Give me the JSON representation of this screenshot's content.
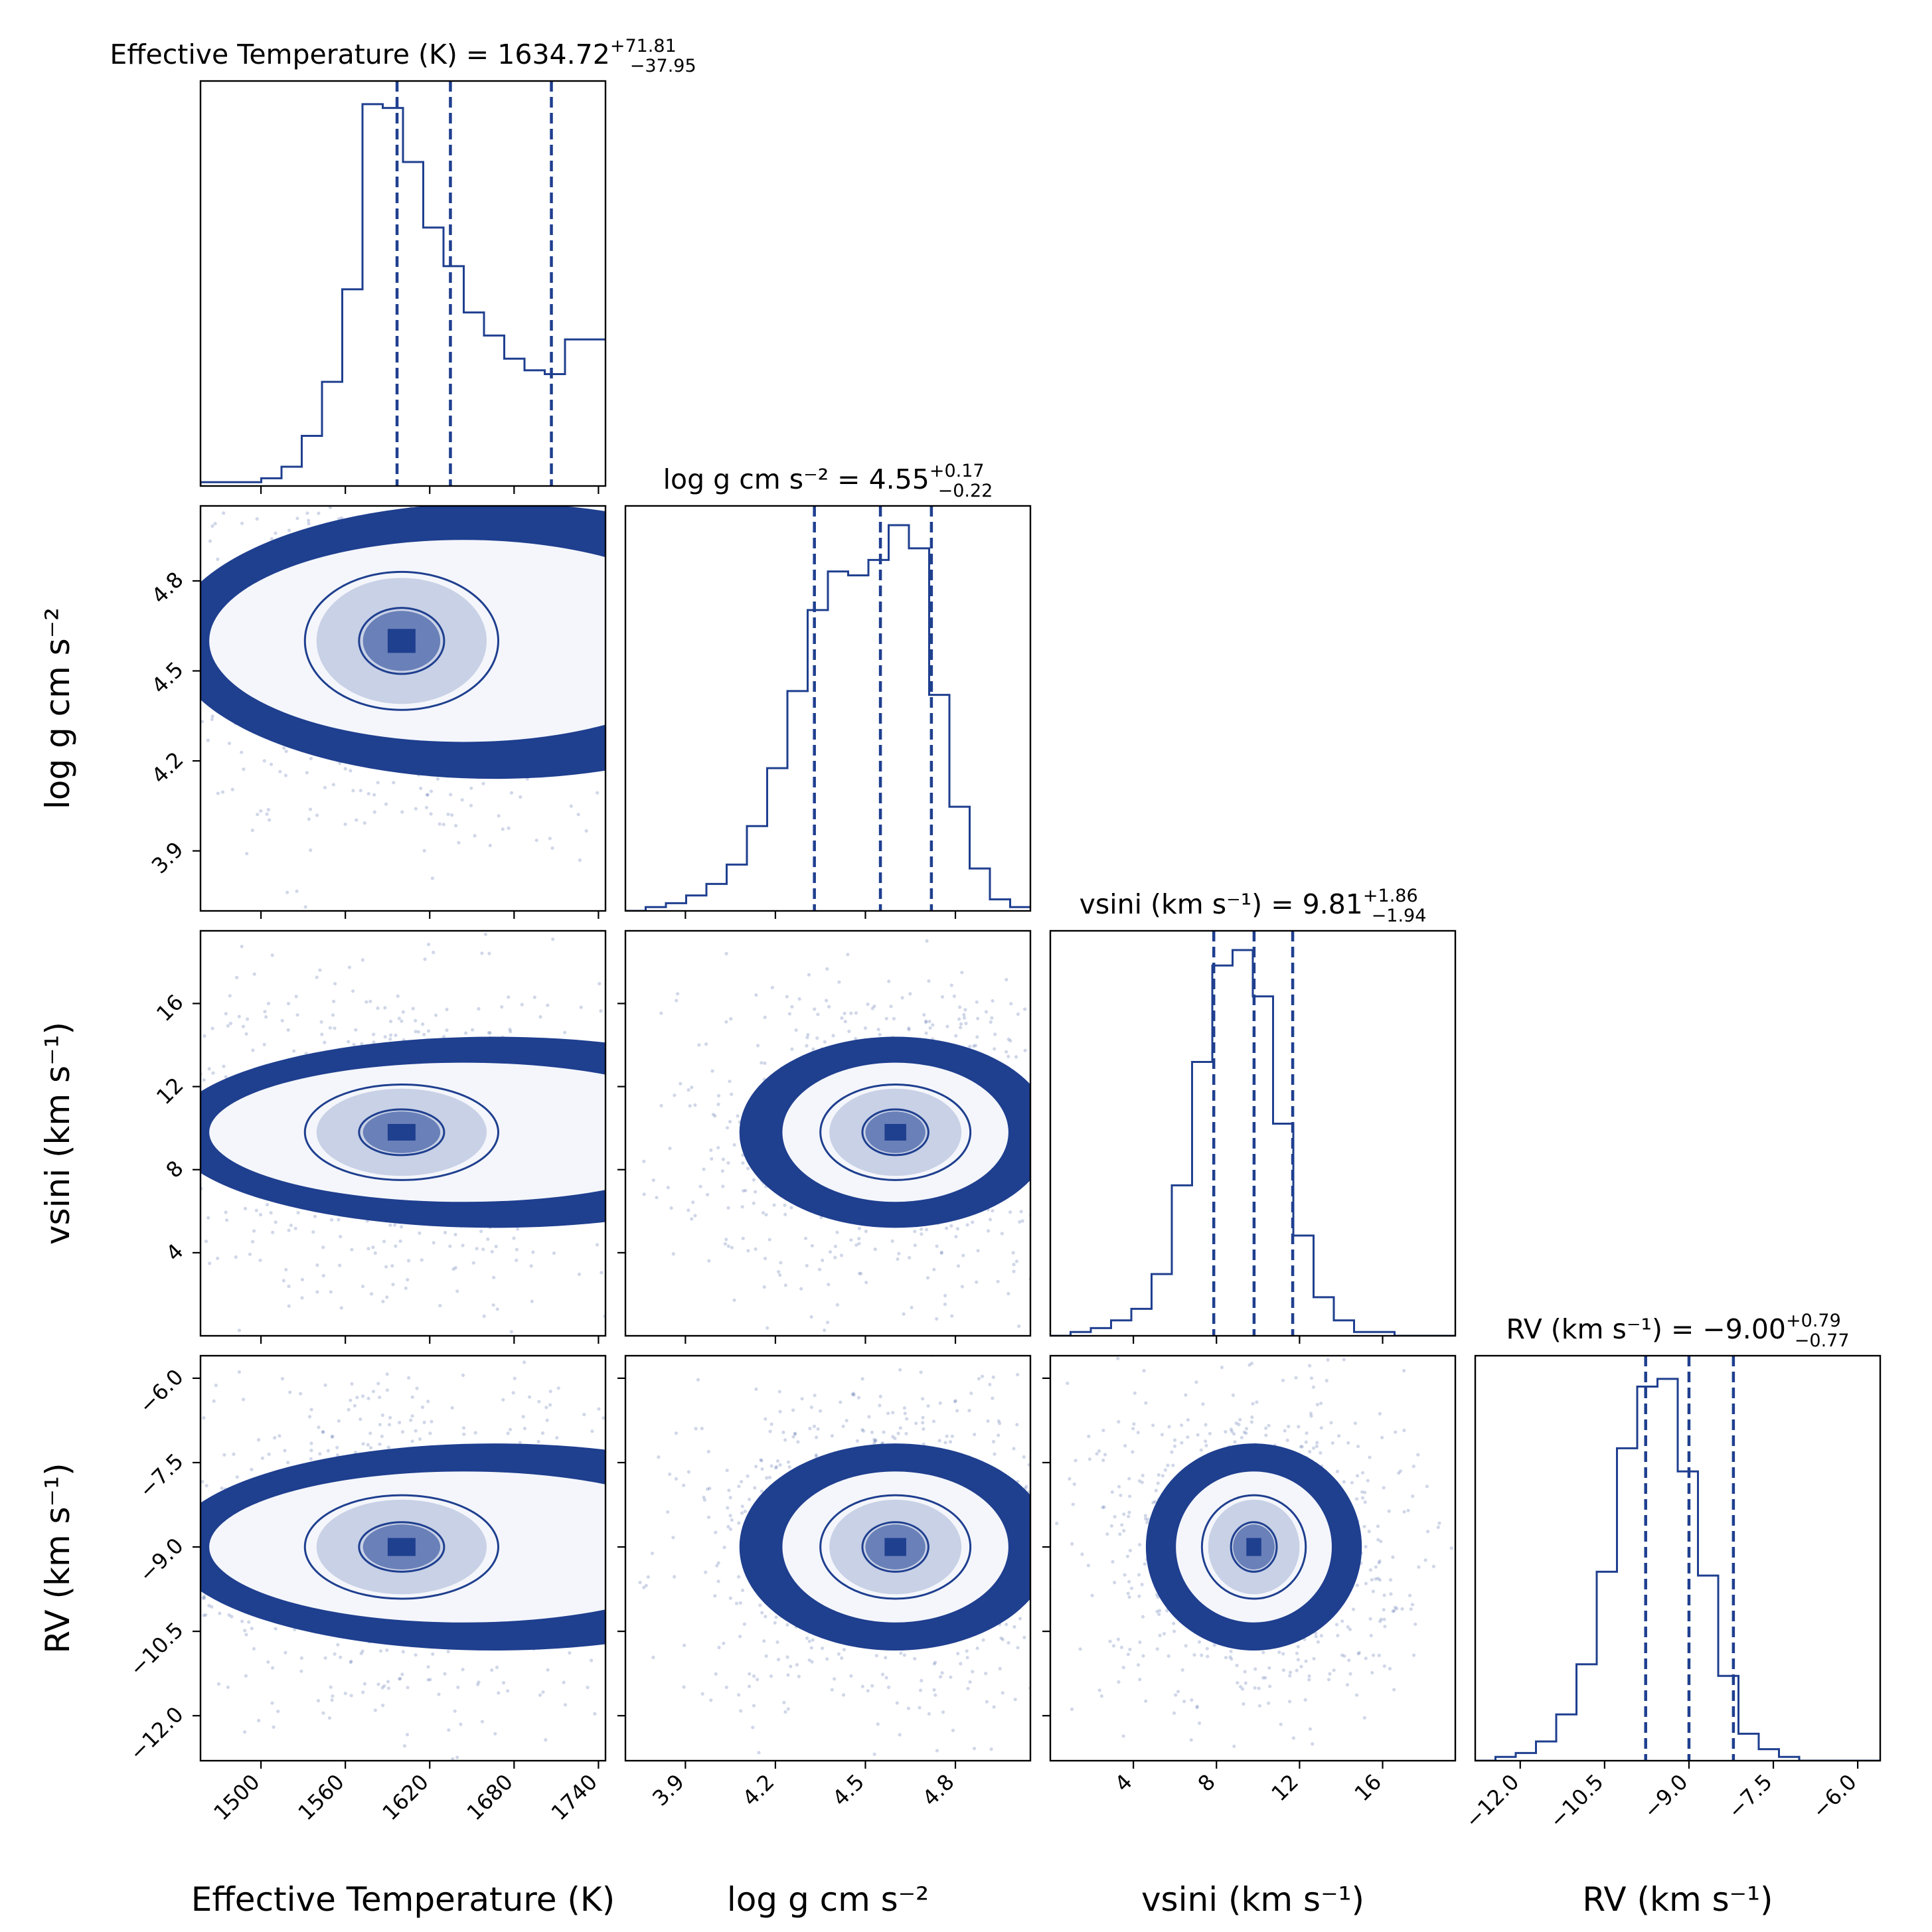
{
  "chart_data": {
    "type": "corner",
    "colors": {
      "main": "#1f3f8f",
      "points": "#2a4b94"
    },
    "params": [
      {
        "key": "teff",
        "label": "Effective Temperature (K)",
        "label_short": "Effective Temperature (K)",
        "title": {
          "prefix": "Effective Temperature (K) = ",
          "value": "1634.72",
          "plus": "+71.81",
          "minus": "−37.95"
        },
        "range": [
          1457,
          1745
        ],
        "ticks": [
          1500,
          1560,
          1620,
          1680,
          1740
        ],
        "tick_labels": [
          "1500",
          "1560",
          "1620",
          "1680",
          "1740"
        ],
        "quantiles": [
          1596.77,
          1634.72,
          1706.53
        ],
        "peak": 1600,
        "sigma": 55,
        "hist": [
          0.01,
          0.01,
          0.01,
          0.02,
          0.05,
          0.13,
          0.27,
          0.51,
          0.99,
          0.98,
          0.84,
          0.67,
          0.57,
          0.45,
          0.39,
          0.33,
          0.3,
          0.29,
          0.38,
          0.38
        ]
      },
      {
        "key": "logg",
        "label": "log g cm s⁻²",
        "label_short": "log g cm s⁻²",
        "title": {
          "prefix": "log g cm s⁻² = ",
          "value": "4.55",
          "plus": "+0.17",
          "minus": "−0.22"
        },
        "range": [
          3.7,
          5.05
        ],
        "ticks": [
          3.9,
          4.2,
          4.5,
          4.8
        ],
        "tick_labels": [
          "3.9",
          "4.2",
          "4.5",
          "4.8"
        ],
        "quantiles": [
          4.33,
          4.55,
          4.72
        ],
        "peak": 4.6,
        "sigma": 0.2,
        "hist": [
          0.0,
          0.01,
          0.02,
          0.04,
          0.07,
          0.12,
          0.22,
          0.37,
          0.57,
          0.78,
          0.88,
          0.87,
          0.91,
          1.0,
          0.94,
          0.56,
          0.27,
          0.11,
          0.03,
          0.01
        ]
      },
      {
        "key": "vsini",
        "label": "vsini (km s⁻¹)",
        "label_short": "vsini (km s⁻¹)",
        "title": {
          "prefix": "vsini (km s⁻¹) = ",
          "value": "9.81",
          "plus": "+1.86",
          "minus": "−1.94"
        },
        "range": [
          0,
          19.5
        ],
        "ticks": [
          4,
          8,
          12,
          16
        ],
        "tick_labels": [
          "4",
          "8",
          "12",
          "16"
        ],
        "quantiles": [
          7.87,
          9.81,
          11.67
        ],
        "peak": 9.8,
        "sigma": 2.0,
        "hist": [
          0.0,
          0.01,
          0.02,
          0.04,
          0.07,
          0.16,
          0.39,
          0.71,
          0.96,
          1.0,
          0.88,
          0.55,
          0.26,
          0.1,
          0.04,
          0.01,
          0.01,
          0.0,
          0.0,
          0.0
        ]
      },
      {
        "key": "rv",
        "label": "RV (km s⁻¹)",
        "label_short": "RV (km s⁻¹)",
        "title": {
          "prefix": "RV (km s⁻¹) = ",
          "value": "−9.00",
          "plus": "+0.79",
          "minus": "−0.77"
        },
        "range": [
          -12.8,
          -5.6
        ],
        "ticks": [
          -12.0,
          -10.5,
          -9.0,
          -7.5,
          -6.0
        ],
        "tick_labels": [
          "−12.0",
          "−10.5",
          "−9.0",
          "−7.5",
          "−6.0"
        ],
        "quantiles": [
          -9.77,
          -9.0,
          -8.21
        ],
        "peak": -9.0,
        "sigma": 0.8,
        "hist": [
          0.0,
          0.01,
          0.02,
          0.05,
          0.12,
          0.25,
          0.49,
          0.81,
          0.97,
          0.99,
          0.75,
          0.48,
          0.22,
          0.07,
          0.03,
          0.01,
          0.0,
          0.0,
          0.0,
          0.0
        ]
      }
    ],
    "axis_labels": [
      "Effective Temperature (K)",
      "log g cm s⁻²",
      "vsini (km s⁻¹)",
      "RV (km s⁻¹)"
    ],
    "contour_levels": [
      0.39,
      0.86,
      0.99
    ]
  }
}
